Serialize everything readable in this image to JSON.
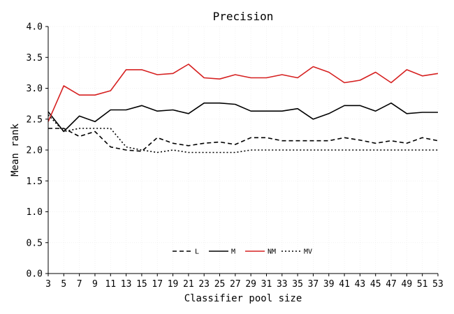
{
  "chart_data": {
    "type": "line",
    "title": "Precision",
    "xlabel": "Classifier pool size",
    "ylabel": "Mean rank",
    "xlim": [
      3,
      53
    ],
    "ylim": [
      0.0,
      4.0
    ],
    "x": [
      3,
      5,
      7,
      9,
      11,
      13,
      15,
      17,
      19,
      21,
      23,
      25,
      27,
      29,
      31,
      33,
      35,
      37,
      39,
      41,
      43,
      45,
      47,
      49,
      51,
      53
    ],
    "x_ticks": [
      "3",
      "5",
      "7",
      "9",
      "11",
      "13",
      "15",
      "17",
      "19",
      "21",
      "23",
      "25",
      "27",
      "29",
      "31",
      "33",
      "35",
      "37",
      "39",
      "41",
      "43",
      "45",
      "47",
      "49",
      "51",
      "53"
    ],
    "y_ticks": [
      "0.0",
      "0.5",
      "1.0",
      "1.5",
      "2.0",
      "2.5",
      "3.0",
      "3.5",
      "4.0"
    ],
    "grid": true,
    "legend_position": "bottom-center",
    "series": [
      {
        "name": "L",
        "color": "#000000",
        "dash": "dashed",
        "values": [
          2.35,
          2.35,
          2.22,
          2.3,
          2.05,
          2.0,
          1.98,
          2.2,
          2.11,
          2.07,
          2.11,
          2.13,
          2.09,
          2.2,
          2.2,
          2.15,
          2.15,
          2.15,
          2.15,
          2.2,
          2.16,
          2.11,
          2.15,
          2.11,
          2.2,
          2.15
        ]
      },
      {
        "name": "M",
        "color": "#000000",
        "dash": "solid",
        "values": [
          2.62,
          2.3,
          2.55,
          2.46,
          2.65,
          2.65,
          2.72,
          2.63,
          2.65,
          2.59,
          2.76,
          2.76,
          2.74,
          2.63,
          2.63,
          2.63,
          2.67,
          2.5,
          2.59,
          2.72,
          2.72,
          2.63,
          2.76,
          2.59,
          2.61,
          2.61
        ]
      },
      {
        "name": "NM",
        "color": "#d62020",
        "dash": "solid",
        "values": [
          2.46,
          3.04,
          2.89,
          2.89,
          2.96,
          3.3,
          3.3,
          3.22,
          3.24,
          3.39,
          3.17,
          3.15,
          3.22,
          3.17,
          3.17,
          3.22,
          3.17,
          3.35,
          3.26,
          3.09,
          3.13,
          3.26,
          3.09,
          3.3,
          3.2,
          3.24
        ]
      },
      {
        "name": "MV",
        "color": "#000000",
        "dash": "dotted",
        "values": [
          2.57,
          2.3,
          2.35,
          2.35,
          2.35,
          2.05,
          2.0,
          1.96,
          2.0,
          1.96,
          1.96,
          1.96,
          1.96,
          2.0,
          2.0,
          2.0,
          2.0,
          2.0,
          2.0,
          2.0,
          2.0,
          2.0,
          2.0,
          2.0,
          2.0,
          2.0
        ]
      }
    ]
  }
}
